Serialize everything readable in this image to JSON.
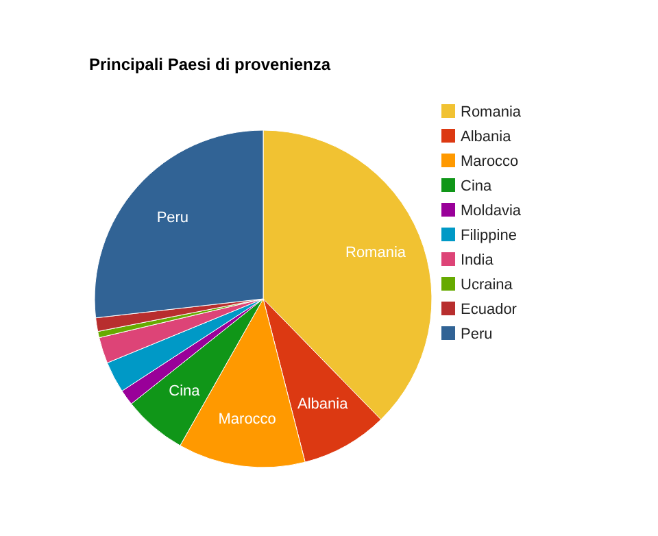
{
  "chart_data": {
    "type": "pie",
    "title": "Principali Paesi di provenienza",
    "categories": [
      "Romania",
      "Albania",
      "Marocco",
      "Cina",
      "Moldavia",
      "Filippine",
      "India",
      "Ucraina",
      "Ecuador",
      "Peru"
    ],
    "values": [
      37.7,
      8.3,
      12.2,
      6.1,
      1.5,
      3.0,
      2.5,
      0.6,
      1.3,
      26.8
    ],
    "colors": [
      "#f1c232",
      "#dc3912",
      "#ff9900",
      "#109618",
      "#990099",
      "#0099c6",
      "#dd4477",
      "#66aa00",
      "#b82e2e",
      "#316395"
    ],
    "legend": "right"
  }
}
